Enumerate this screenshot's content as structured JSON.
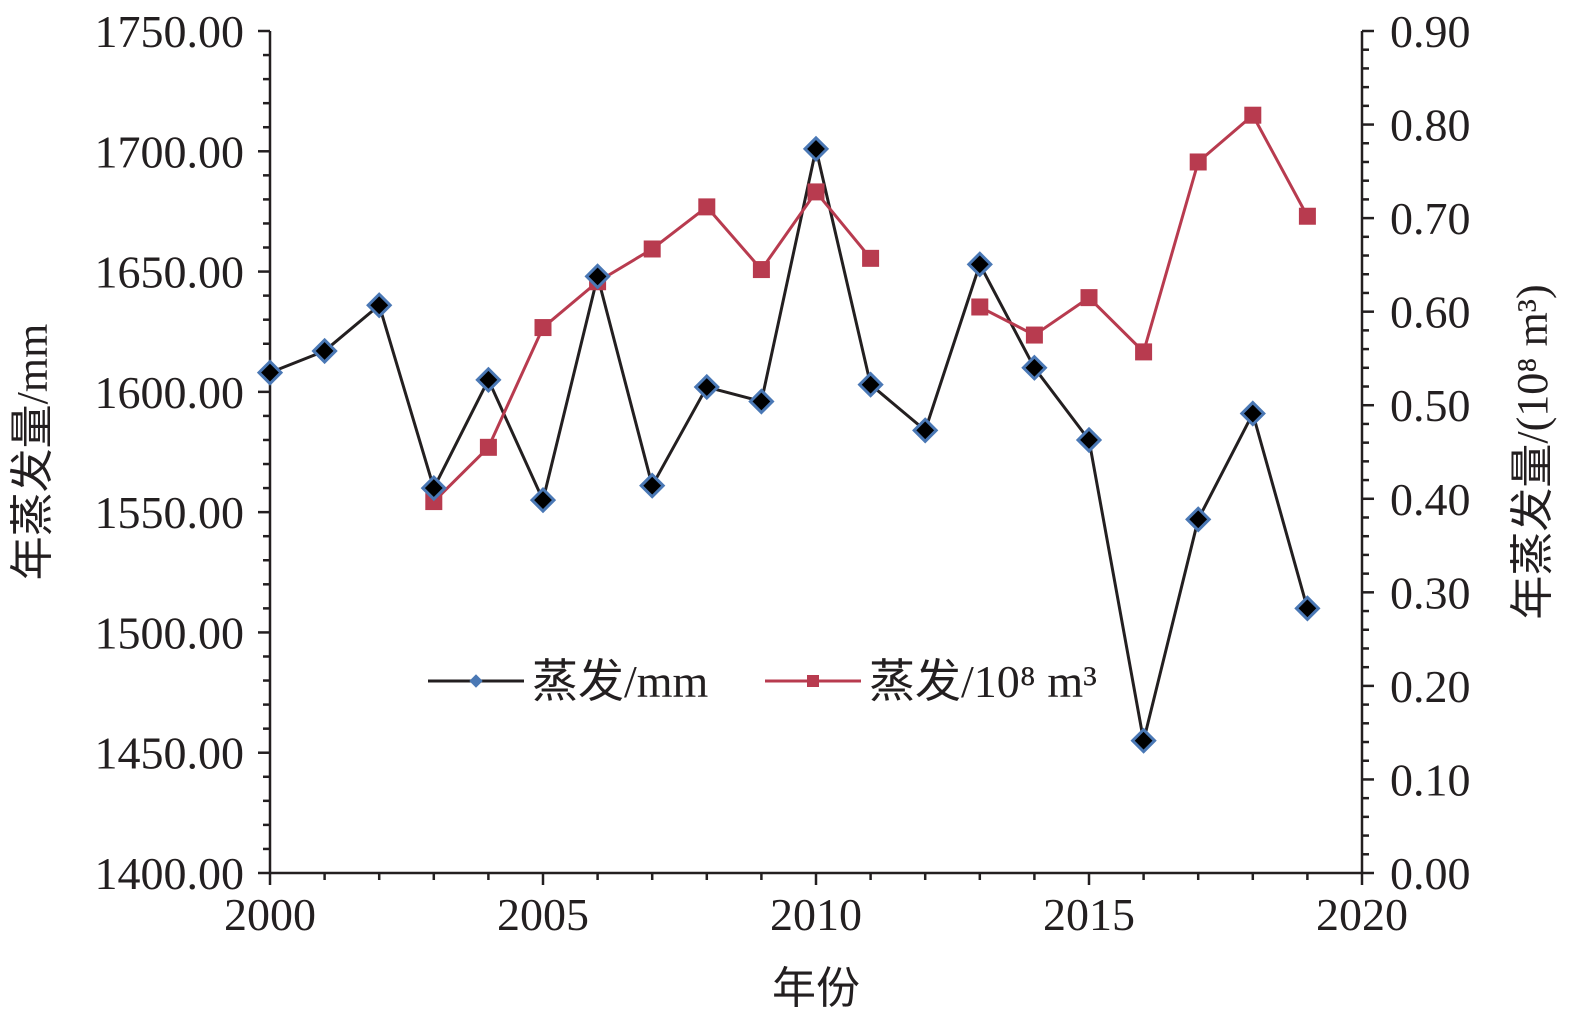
{
  "chart_data": {
    "type": "line",
    "xlabel": "年份",
    "ylabel": "年蒸发量/mm",
    "y2label": "年蒸发量/(10⁸ m³)",
    "xlim": [
      2000,
      2020
    ],
    "ylim": [
      1400,
      1750
    ],
    "y2lim": [
      0,
      0.9
    ],
    "x_ticks": [
      "2000",
      "2005",
      "2010",
      "2015",
      "2020"
    ],
    "y_ticks": [
      "1400.00",
      "1450.00",
      "1500.00",
      "1550.00",
      "1600.00",
      "1650.00",
      "1700.00",
      "1750.00"
    ],
    "y2_ticks": [
      "0.00",
      "0.10",
      "0.20",
      "0.30",
      "0.40",
      "0.50",
      "0.60",
      "0.70",
      "0.80",
      "0.90"
    ],
    "grid": false,
    "legend_position": "bottom-center",
    "series": [
      {
        "name": "蒸发/mm",
        "axis": "left",
        "color": "#231f20",
        "marker_fill": "#000000",
        "marker_edge": "#4a78b5",
        "marker": "diamond",
        "x": [
          2000,
          2001,
          2002,
          2003,
          2004,
          2005,
          2006,
          2007,
          2008,
          2009,
          2010,
          2011,
          2012,
          2013,
          2014,
          2015,
          2016,
          2017,
          2018,
          2019
        ],
        "y": [
          1608,
          1617,
          1636,
          1560,
          1605,
          1555,
          1648,
          1561,
          1602,
          1596,
          1701,
          1603,
          1584,
          1653,
          1610,
          1580,
          1455,
          1547,
          1591,
          1510
        ]
      },
      {
        "name": "蒸发/10⁸ m³",
        "axis": "right",
        "color": "#b83b4f",
        "marker_fill": "#b83b4f",
        "marker": "square",
        "segments": [
          {
            "x": [
              2003,
              2004,
              2005,
              2006,
              2007,
              2008,
              2009,
              2010,
              2011
            ],
            "y": [
              0.397,
              0.455,
              0.583,
              0.632,
              0.667,
              0.712,
              0.645,
              0.728,
              0.657
            ]
          },
          {
            "x": [
              2013,
              2014,
              2015,
              2016,
              2017,
              2018,
              2019
            ],
            "y": [
              0.605,
              0.575,
              0.615,
              0.557,
              0.76,
              0.81,
              0.702
            ]
          }
        ]
      }
    ]
  }
}
